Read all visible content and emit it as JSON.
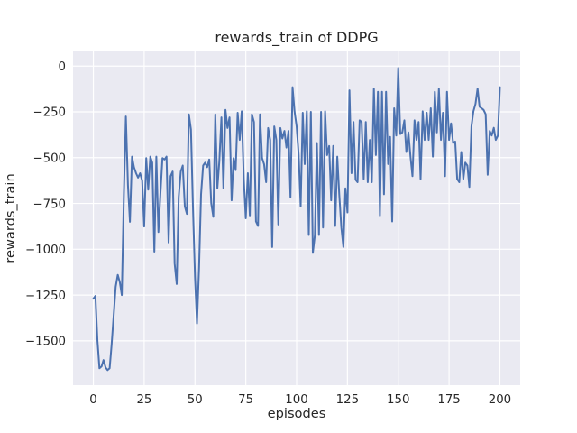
{
  "chart_data": {
    "type": "line",
    "title": "rewards_train of DDPG",
    "xlabel": "episodes",
    "ylabel": "rewards_train",
    "xlim": [
      -10,
      210
    ],
    "ylim": [
      -1742,
      80
    ],
    "xticks": [
      0,
      25,
      50,
      75,
      100,
      125,
      150,
      175,
      200
    ],
    "xticklabels": [
      "0",
      "25",
      "50",
      "75",
      "100",
      "125",
      "150",
      "175",
      "200"
    ],
    "yticks": [
      0,
      -250,
      -500,
      -750,
      -1000,
      -1250,
      -1500
    ],
    "yticklabels": [
      "0",
      "−250",
      "−500",
      "−750",
      "−1000",
      "−1250",
      "−1500"
    ],
    "grid": true,
    "legend": false,
    "style": {
      "figure_background": "#ffffff",
      "plot_background": "#eaeaf2",
      "grid_color": "#ffffff",
      "line_color": "#4c72b0",
      "text_color": "#262626"
    },
    "series": [
      {
        "name": "rewards_train",
        "x": {
          "start": 0,
          "step": 1,
          "count": 201
        },
        "y": [
          -1270,
          -1255,
          -1500,
          -1650,
          -1640,
          -1605,
          -1645,
          -1660,
          -1650,
          -1520,
          -1360,
          -1205,
          -1140,
          -1180,
          -1250,
          -700,
          -275,
          -650,
          -850,
          -494,
          -552,
          -585,
          -609,
          -585,
          -626,
          -876,
          -502,
          -675,
          -494,
          -527,
          -1013,
          -494,
          -906,
          -700,
          -502,
          -510,
          -494,
          -963,
          -601,
          -576,
          -1078,
          -1190,
          -716,
          -576,
          -543,
          -766,
          -807,
          -263,
          -346,
          -766,
          -1150,
          -1405,
          -1100,
          -700,
          -543,
          -527,
          -552,
          -510,
          -749,
          -823,
          -263,
          -667,
          -519,
          -280,
          -667,
          -239,
          -338,
          -280,
          -733,
          -502,
          -568,
          -255,
          -403,
          -247,
          -617,
          -831,
          -585,
          -815,
          -263,
          -305,
          -848,
          -873,
          -263,
          -502,
          -535,
          -634,
          -338,
          -403,
          -988,
          -329,
          -403,
          -865,
          -338,
          -395,
          -354,
          -445,
          -354,
          -716,
          -115,
          -247,
          -329,
          -486,
          -766,
          -255,
          -535,
          -247,
          -922,
          -250,
          -1020,
          -922,
          -420,
          -922,
          -250,
          -881,
          -247,
          -486,
          -436,
          -733,
          -436,
          -873,
          -494,
          -700,
          -881,
          -988,
          -667,
          -799,
          -132,
          -585,
          -305,
          -620,
          -634,
          -296,
          -305,
          -617,
          -305,
          -634,
          -403,
          -634,
          -124,
          -486,
          -140,
          -815,
          -140,
          -700,
          -140,
          -535,
          -387,
          -848,
          -230,
          -379,
          -10,
          -371,
          -362,
          -296,
          -469,
          -362,
          -494,
          -601,
          -296,
          -403,
          -305,
          -617,
          -247,
          -403,
          -255,
          -403,
          -230,
          -494,
          -140,
          -362,
          -124,
          -403,
          -255,
          -601,
          -140,
          -403,
          -313,
          -420,
          -412,
          -617,
          -634,
          -469,
          -617,
          -527,
          -543,
          -660,
          -329,
          -247,
          -206,
          -123,
          -222,
          -230,
          -239,
          -263,
          -593,
          -354,
          -379,
          -337,
          -403,
          -380,
          -115
        ]
      }
    ]
  }
}
